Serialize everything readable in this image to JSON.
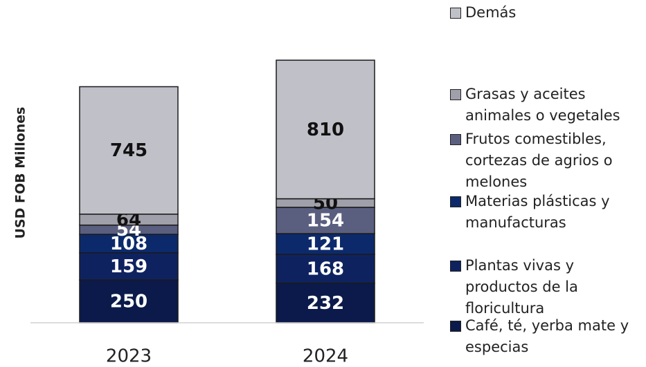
{
  "chart_data": {
    "type": "stacked_bar",
    "y_label": "USD FOB Millones",
    "categories": [
      "2023",
      "2024"
    ],
    "ylim": [
      0,
      1600
    ],
    "series": [
      {
        "name": "Café, té, yerba mate y especias",
        "color": "#0b1a4a",
        "values": [
          250,
          232
        ]
      },
      {
        "name": "Plantas vivas y productos de la floricultura",
        "color": "#0f2260",
        "values": [
          159,
          168
        ]
      },
      {
        "name": "Materias plásticas y manufacturas",
        "color": "#0c2a6b",
        "values": [
          108,
          121
        ]
      },
      {
        "name": "Frutos comestibles, cortezas de agrios o melones",
        "color": "#5a5f80",
        "values": [
          54,
          154
        ]
      },
      {
        "name": "Grasas y aceites animales o vegetales",
        "color": "#a0a0ab",
        "values": [
          64,
          50
        ]
      },
      {
        "name": "Demás",
        "color": "#c0c0c8",
        "values": [
          745,
          810
        ]
      }
    ]
  }
}
